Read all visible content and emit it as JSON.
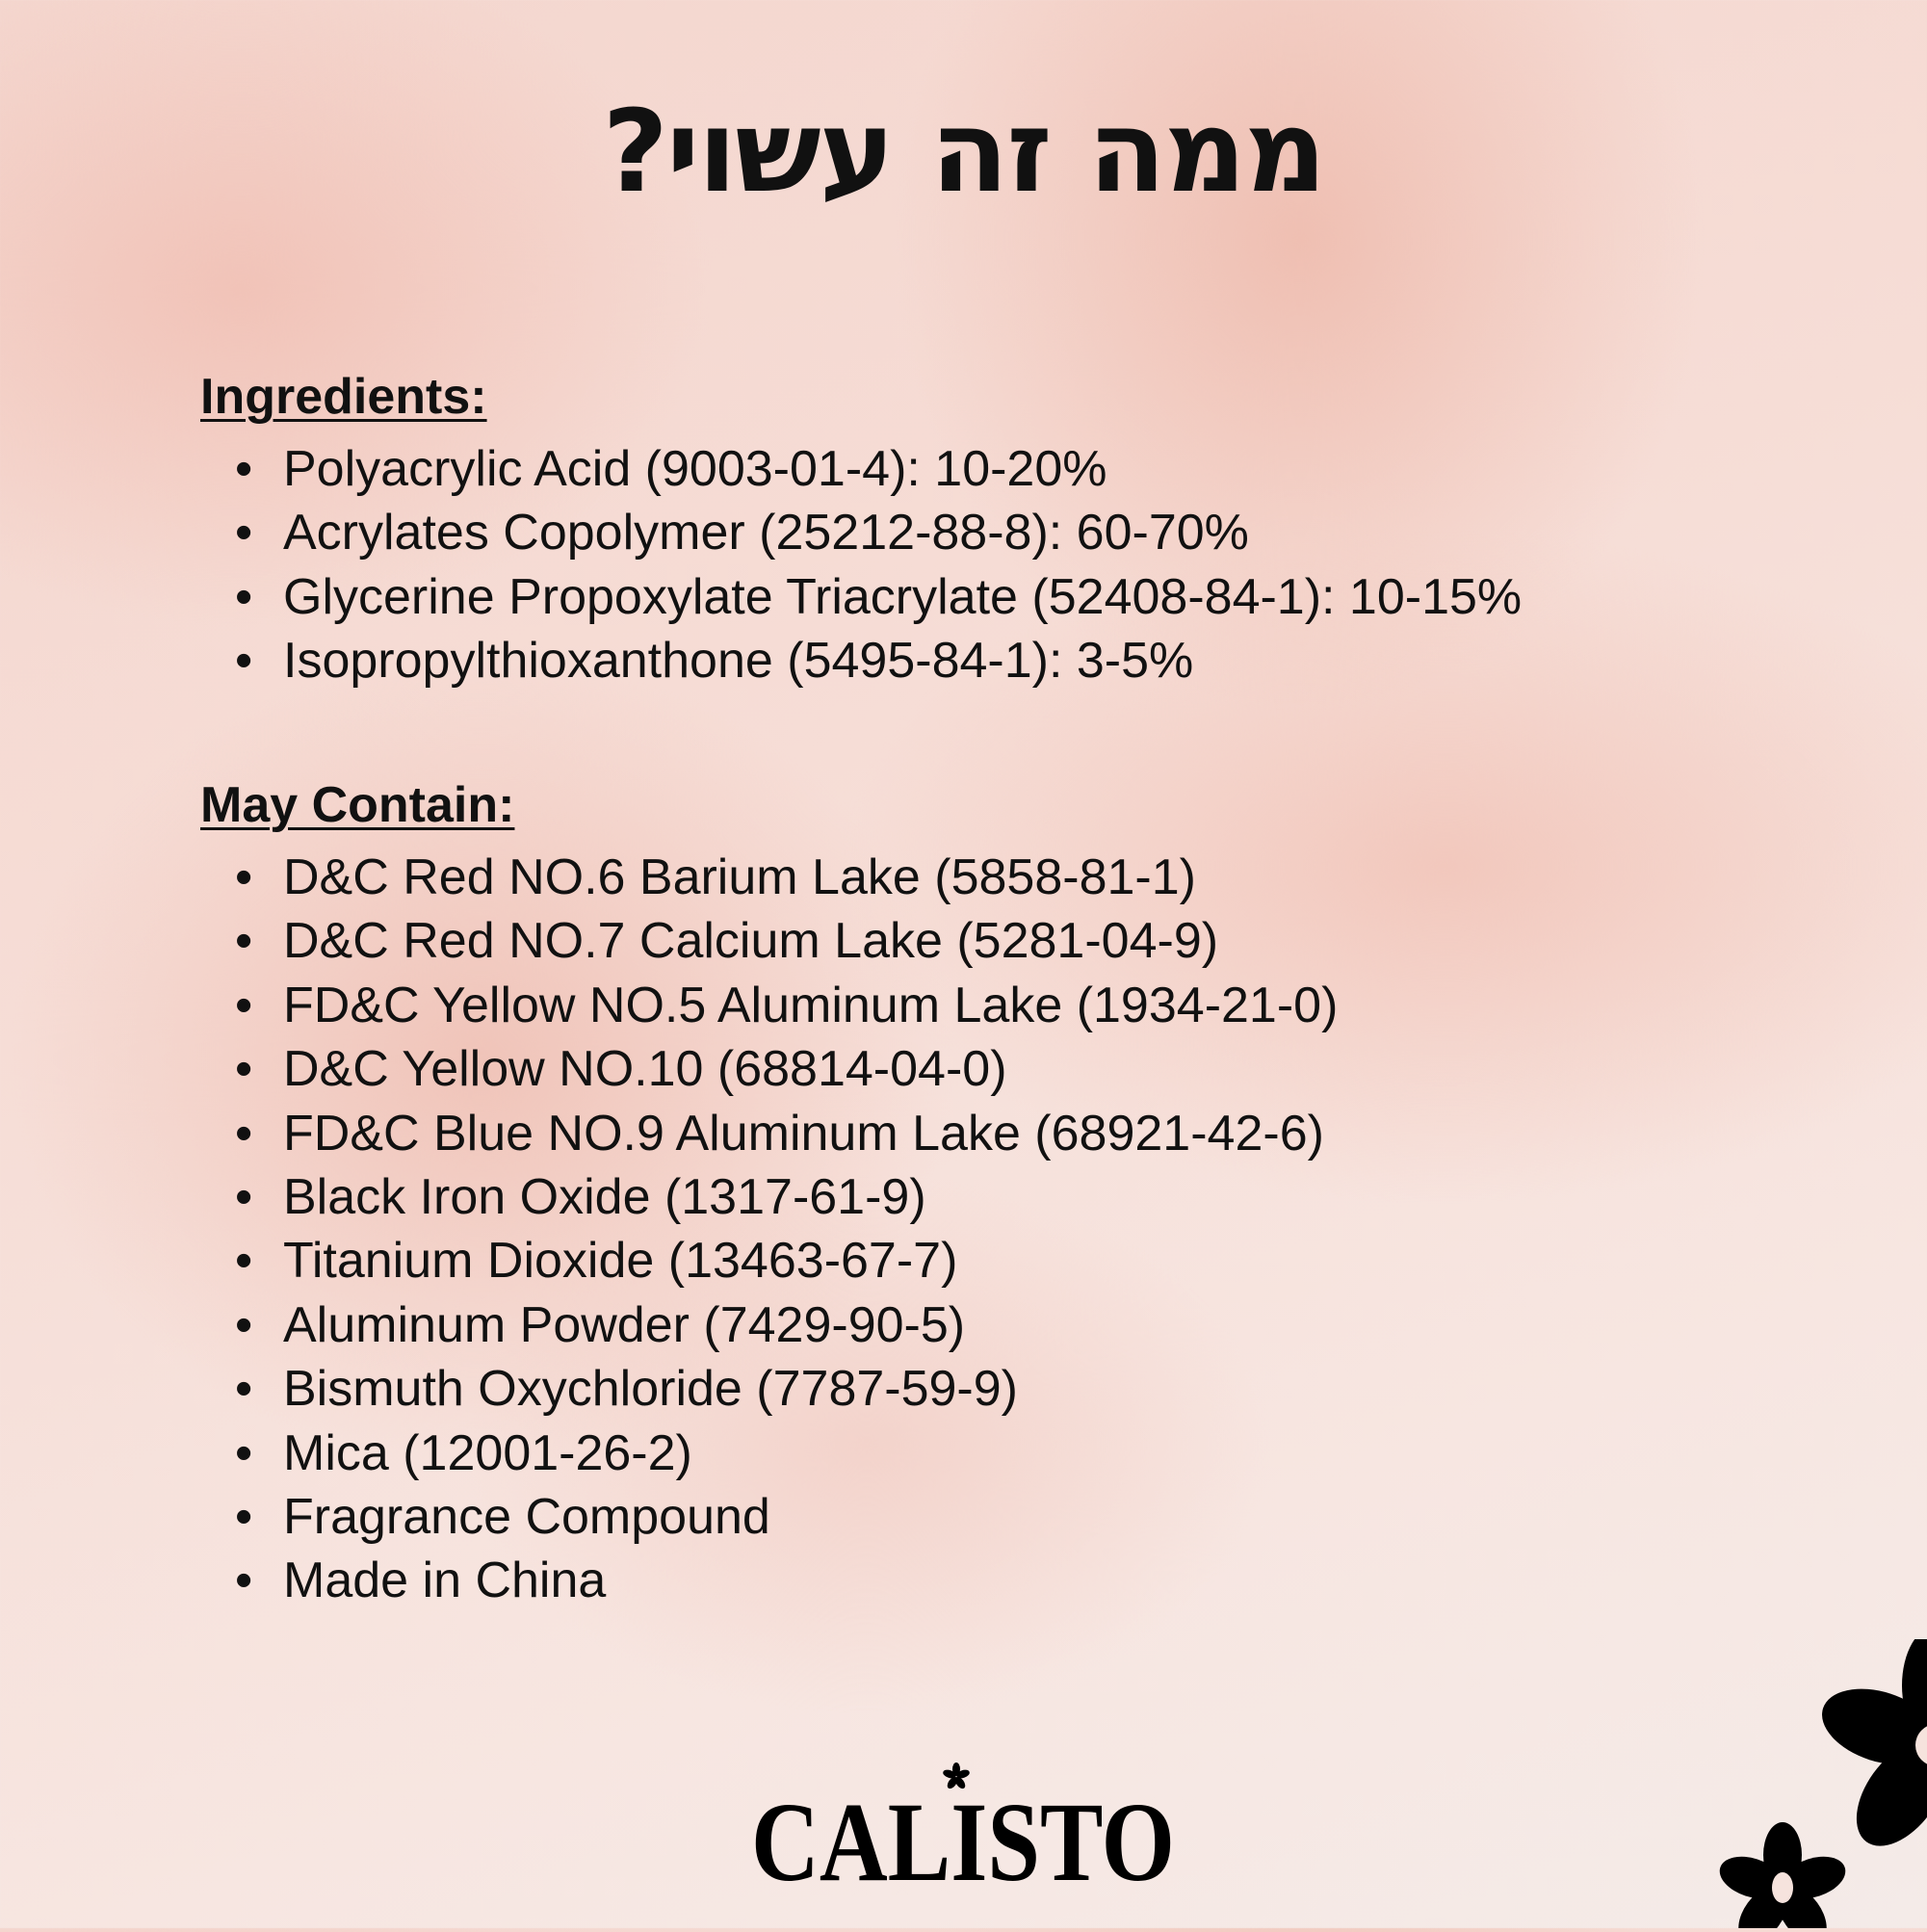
{
  "title": "ממה זה עשוי?",
  "ingredients": {
    "heading": "Ingredients:",
    "items": [
      "Polyacrylic Acid (9003-01-4): 10-20%",
      "Acrylates Copolymer (25212-88-8): 60-70%",
      "Glycerine Propoxylate Triacrylate (52408-84-1): 10-15%",
      "Isopropylthioxanthone (5495-84-1): 3-5%"
    ]
  },
  "may_contain": {
    "heading": "May Contain:",
    "items": [
      "D&C Red NO.6 Barium Lake (5858-81-1)",
      "D&C Red NO.7 Calcium Lake (5281-04-9)",
      "FD&C Yellow NO.5 Aluminum Lake (1934-21-0)",
      "D&C Yellow NO.10 (68814-04-0)",
      "FD&C Blue NO.9 Aluminum Lake (68921-42-6)",
      "Black Iron Oxide (1317-61-9)",
      "Titanium Dioxide (13463-67-7)",
      "Aluminum Powder (7429-90-5)",
      "Bismuth Oxychloride (7787-59-9)",
      "Mica (12001-26-2)",
      "Fragrance Compound",
      "Made in China"
    ]
  },
  "bullet": "•",
  "logo": {
    "text": "CALISTO",
    "icon": "flower-icon"
  },
  "colors": {
    "text": "#111111",
    "background": "#f4d6ce"
  }
}
